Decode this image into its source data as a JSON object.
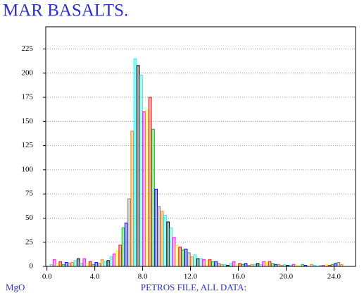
{
  "chart_data": {
    "type": "histogram",
    "title": "MAR BASALTS.",
    "xlabel": "PETROS FILE, ALL DATA:",
    "variable": "MgO",
    "bins": [
      0,
      0.25,
      0.5,
      0.75,
      1,
      1.25,
      1.5,
      1.75,
      2,
      2.25,
      2.5,
      2.75,
      3,
      3.25,
      3.5,
      3.75,
      4,
      4.25,
      4.5,
      4.75,
      5,
      5.25,
      5.5,
      5.75,
      6,
      6.25,
      6.5,
      6.75,
      7,
      7.25,
      7.5,
      7.75,
      8,
      8.25,
      8.5,
      8.75,
      9,
      9.25,
      9.5,
      9.75,
      10,
      10.25,
      10.5,
      10.75,
      11,
      11.25,
      11.5,
      11.75,
      12,
      12.25,
      12.5,
      12.75,
      13,
      13.25,
      13.5,
      13.75,
      14,
      14.25,
      14.5,
      14.75,
      15,
      15.25,
      15.5,
      15.75,
      16,
      16.25,
      16.5,
      16.75,
      17,
      17.25,
      17.5,
      17.75,
      18,
      18.25,
      18.5,
      18.75,
      19,
      19.25,
      19.5,
      19.75,
      20,
      20.25,
      20.5,
      20.75,
      21,
      21.25,
      21.5,
      21.75,
      22,
      22.25,
      22.5,
      22.75,
      23,
      23.25,
      23.5,
      23.75,
      24,
      24.25,
      24.5,
      24.75,
      25
    ],
    "values": [
      0,
      2,
      7,
      3,
      5,
      2,
      4,
      3,
      4,
      6,
      8,
      3,
      8,
      3,
      5,
      2,
      4,
      3,
      7,
      5,
      6,
      10,
      13,
      16,
      22,
      40,
      45,
      70,
      140,
      215,
      208,
      198,
      160,
      162,
      175,
      142,
      80,
      62,
      57,
      53,
      46,
      40,
      30,
      22,
      20,
      17,
      18,
      14,
      10,
      12,
      8,
      8,
      7,
      6,
      7,
      5,
      5,
      3,
      2,
      2,
      1,
      3,
      5,
      2,
      3,
      2,
      3,
      1,
      2,
      2,
      3,
      2,
      5,
      4,
      5,
      3,
      2,
      2,
      1,
      2,
      1,
      1,
      2,
      1,
      0,
      2,
      1,
      0,
      2,
      1,
      0,
      1,
      1,
      2,
      1,
      2,
      3,
      4,
      2,
      0
    ],
    "colors": [
      "#000000",
      "#40e0d0",
      "#ff00ff",
      "#ffff00",
      "#ff0000",
      "#00c000",
      "#0000ff",
      "#808080",
      "#ff8000",
      "#00ffff"
    ],
    "xlim": [
      -0.1,
      25.8
    ],
    "ylim": [
      0,
      248
    ],
    "xticks": [
      {
        "value": 0,
        "label": "0.0"
      },
      {
        "value": 4,
        "label": "4.0"
      },
      {
        "value": 8,
        "label": "8.0"
      },
      {
        "value": 12,
        "label": "12.0"
      },
      {
        "value": 16,
        "label": "16.0"
      },
      {
        "value": 20,
        "label": "20.0"
      },
      {
        "value": 24,
        "label": "24.0"
      }
    ],
    "yticks": [
      0,
      25,
      50,
      75,
      100,
      125,
      150,
      175,
      200,
      225
    ],
    "grid": true
  }
}
